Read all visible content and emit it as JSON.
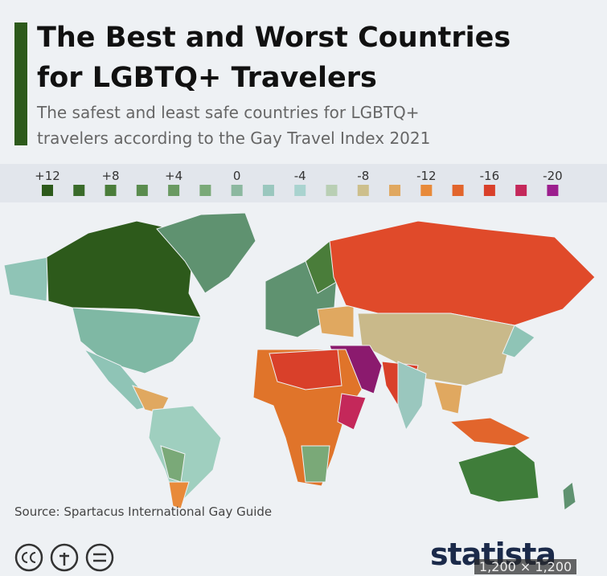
{
  "header": {
    "title_lines": [
      "The Best and Worst Countries",
      "for LGBTQ+ Travelers"
    ],
    "subtitle_lines": [
      "The safest and least safe countries for LGBTQ+",
      "travelers according to the Gay Travel Index 2021"
    ]
  },
  "legend": {
    "ticks": [
      "+12",
      "+8",
      "+4",
      "0",
      "-4",
      "-8",
      "-12",
      "-16",
      "-20"
    ],
    "colors": [
      "#2d5a1b",
      "#3a6b2a",
      "#4a7d3a",
      "#5a8c4e",
      "#6a9a62",
      "#7aa978",
      "#8cb8a0",
      "#9ac7be",
      "#a9d3cf",
      "#b9cfb4",
      "#cdbf8c",
      "#e0a860",
      "#e88a3a",
      "#e2652c",
      "#d9402a",
      "#c4285a",
      "#9c1f8e"
    ]
  },
  "footer": {
    "source": "Source: Spartacus International Gay Guide",
    "brand": "statista",
    "overlay": "1,200 × 1,200"
  }
}
